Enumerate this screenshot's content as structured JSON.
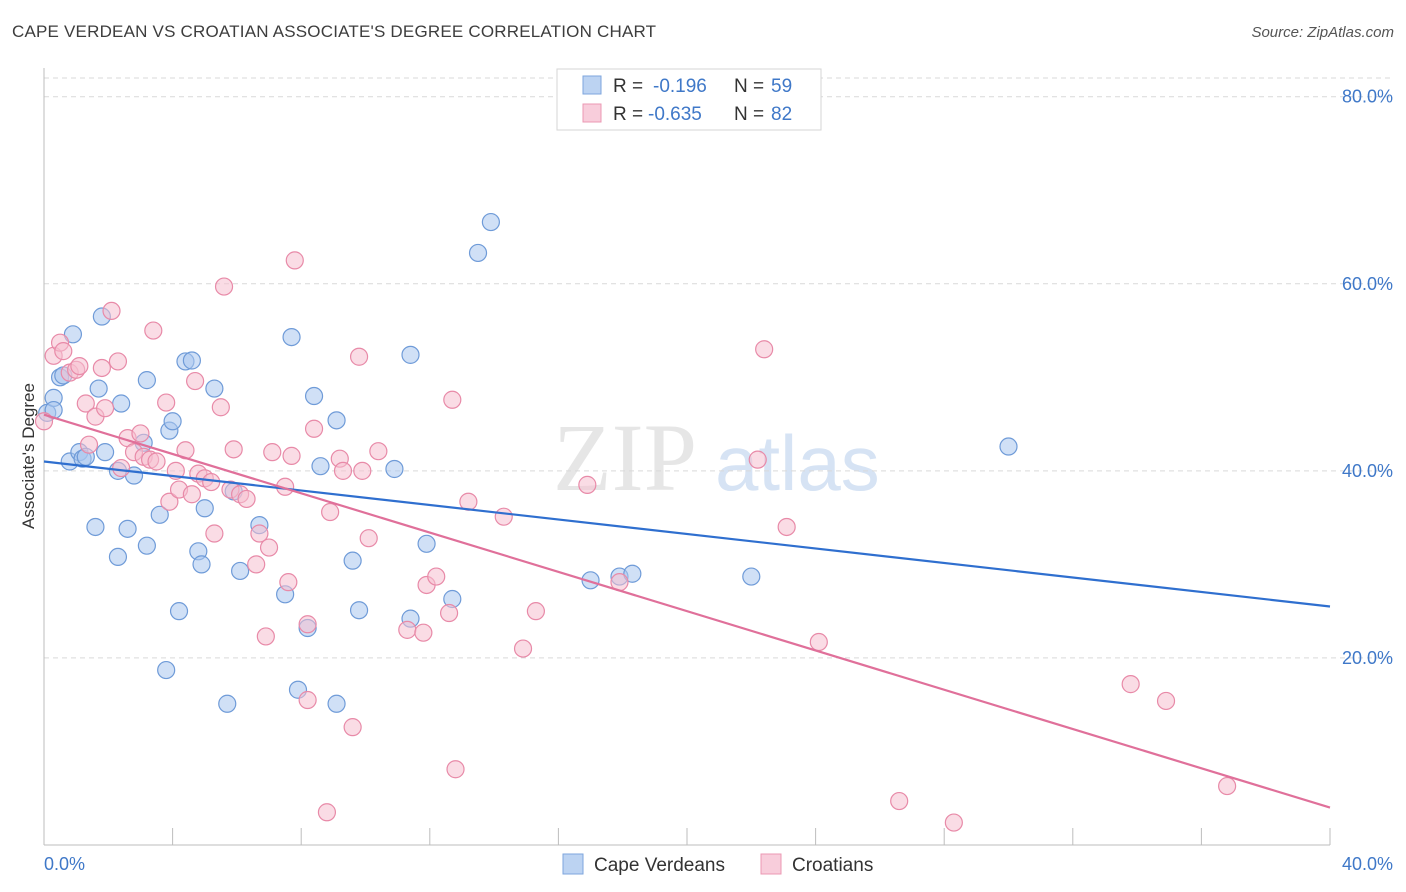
{
  "title": "CAPE VERDEAN VS CROATIAN ASSOCIATE'S DEGREE CORRELATION CHART",
  "source": "Source: ZipAtlas.com",
  "watermark": {
    "zip": "ZIP",
    "atlas": "atlas"
  },
  "colors": {
    "blue_fill": "#a9c6ee",
    "blue_stroke": "#6f9bd8",
    "blue_line": "#2f6fcf",
    "pink_fill": "#f6bfd0",
    "pink_stroke": "#e88aa8",
    "pink_line": "#e0709a",
    "grid": "#d9d9d9",
    "axis_text": "#3f78c8"
  },
  "legend": {
    "rows": [
      {
        "r_label": "R = ",
        "r_value": "-0.196",
        "n_label": "N = ",
        "n_value": "59",
        "series": "blue"
      },
      {
        "r_label": "R = ",
        "r_value": "-0.635",
        "n_label": "N = ",
        "n_value": "82",
        "series": "pink"
      }
    ]
  },
  "bottom_legend": [
    {
      "label": "Cape Verdeans",
      "series": "blue"
    },
    {
      "label": "Croatians",
      "series": "pink"
    }
  ],
  "chart_data": {
    "type": "scatter",
    "title": "CAPE VERDEAN VS CROATIAN ASSOCIATE'S DEGREE CORRELATION CHART",
    "ylabel": "Associate's Degree",
    "xlabel": "",
    "xlim": [
      0,
      40
    ],
    "ylim": [
      0,
      82
    ],
    "x_tick_labels": [
      {
        "value": 0,
        "label": "0.0%"
      },
      {
        "value": 40,
        "label": "40.0%"
      }
    ],
    "y_tick_labels": [
      {
        "value": 20,
        "label": "20.0%"
      },
      {
        "value": 40,
        "label": "40.0%"
      },
      {
        "value": 60,
        "label": "60.0%"
      },
      {
        "value": 80,
        "label": "80.0%"
      }
    ],
    "grid": "horizontal dashed",
    "series": [
      {
        "name": "Cape Verdeans",
        "color": "#a9c6ee",
        "trend": {
          "x": [
            0,
            40
          ],
          "y": [
            41.0,
            25.5
          ]
        },
        "points": [
          [
            0.1,
            46.2
          ],
          [
            0.3,
            47.8
          ],
          [
            0.3,
            46.5
          ],
          [
            0.5,
            50.0
          ],
          [
            0.6,
            50.2
          ],
          [
            0.8,
            41.0
          ],
          [
            0.9,
            54.6
          ],
          [
            1.1,
            42.0
          ],
          [
            1.2,
            41.3
          ],
          [
            1.3,
            41.5
          ],
          [
            1.6,
            34.0
          ],
          [
            1.7,
            48.8
          ],
          [
            1.8,
            56.5
          ],
          [
            1.9,
            42.0
          ],
          [
            2.3,
            30.8
          ],
          [
            2.3,
            40.0
          ],
          [
            2.4,
            47.2
          ],
          [
            2.6,
            33.8
          ],
          [
            2.8,
            39.5
          ],
          [
            3.1,
            43.0
          ],
          [
            3.2,
            32.0
          ],
          [
            3.2,
            49.7
          ],
          [
            3.6,
            35.3
          ],
          [
            3.8,
            18.7
          ],
          [
            3.9,
            44.3
          ],
          [
            4.0,
            45.3
          ],
          [
            4.2,
            25.0
          ],
          [
            4.4,
            51.7
          ],
          [
            4.6,
            51.8
          ],
          [
            4.8,
            31.4
          ],
          [
            4.9,
            30.0
          ],
          [
            5.0,
            36.0
          ],
          [
            5.3,
            48.8
          ],
          [
            5.7,
            15.1
          ],
          [
            5.9,
            37.8
          ],
          [
            6.1,
            29.3
          ],
          [
            6.7,
            34.2
          ],
          [
            7.5,
            26.8
          ],
          [
            7.7,
            54.3
          ],
          [
            7.9,
            16.6
          ],
          [
            8.2,
            23.2
          ],
          [
            8.4,
            48.0
          ],
          [
            8.6,
            40.5
          ],
          [
            9.1,
            15.1
          ],
          [
            9.1,
            45.4
          ],
          [
            9.6,
            30.4
          ],
          [
            9.8,
            25.1
          ],
          [
            10.9,
            40.2
          ],
          [
            11.4,
            52.4
          ],
          [
            11.4,
            24.2
          ],
          [
            11.9,
            32.2
          ],
          [
            12.7,
            26.3
          ],
          [
            13.5,
            63.3
          ],
          [
            13.9,
            66.6
          ],
          [
            17.0,
            28.3
          ],
          [
            17.9,
            28.7
          ],
          [
            18.3,
            29.0
          ],
          [
            22.0,
            28.7
          ],
          [
            30.0,
            42.6
          ]
        ]
      },
      {
        "name": "Croatians",
        "color": "#f6bfd0",
        "trend": {
          "x": [
            0,
            40
          ],
          "y": [
            46.0,
            4.0
          ]
        },
        "points": [
          [
            0.0,
            45.3
          ],
          [
            0.3,
            52.3
          ],
          [
            0.5,
            53.7
          ],
          [
            0.6,
            52.8
          ],
          [
            0.8,
            50.5
          ],
          [
            1.0,
            50.8
          ],
          [
            1.1,
            51.2
          ],
          [
            1.3,
            47.2
          ],
          [
            1.4,
            42.8
          ],
          [
            1.6,
            45.8
          ],
          [
            1.8,
            51.0
          ],
          [
            1.9,
            46.7
          ],
          [
            2.3,
            51.7
          ],
          [
            2.4,
            40.3
          ],
          [
            2.1,
            57.1
          ],
          [
            2.6,
            43.5
          ],
          [
            2.8,
            42.0
          ],
          [
            3.0,
            44.0
          ],
          [
            3.1,
            41.5
          ],
          [
            3.3,
            41.2
          ],
          [
            3.4,
            55.0
          ],
          [
            3.5,
            41.0
          ],
          [
            3.8,
            47.3
          ],
          [
            3.9,
            36.7
          ],
          [
            4.1,
            40.0
          ],
          [
            4.2,
            38.0
          ],
          [
            4.4,
            42.2
          ],
          [
            4.6,
            37.5
          ],
          [
            4.7,
            49.6
          ],
          [
            4.8,
            39.7
          ],
          [
            5.0,
            39.2
          ],
          [
            5.2,
            38.8
          ],
          [
            5.3,
            33.3
          ],
          [
            5.5,
            46.8
          ],
          [
            5.6,
            59.7
          ],
          [
            5.8,
            38.0
          ],
          [
            5.9,
            42.3
          ],
          [
            6.1,
            37.5
          ],
          [
            6.3,
            37.0
          ],
          [
            6.6,
            30.0
          ],
          [
            6.7,
            33.3
          ],
          [
            6.9,
            22.3
          ],
          [
            7.0,
            31.8
          ],
          [
            7.1,
            42.0
          ],
          [
            7.5,
            38.3
          ],
          [
            7.6,
            28.1
          ],
          [
            7.7,
            41.6
          ],
          [
            7.8,
            62.5
          ],
          [
            8.2,
            15.5
          ],
          [
            8.2,
            23.6
          ],
          [
            8.4,
            44.5
          ],
          [
            8.8,
            3.5
          ],
          [
            8.9,
            35.6
          ],
          [
            9.2,
            41.3
          ],
          [
            9.3,
            40.0
          ],
          [
            9.6,
            12.6
          ],
          [
            9.8,
            52.2
          ],
          [
            9.9,
            40.0
          ],
          [
            10.1,
            32.8
          ],
          [
            10.4,
            42.1
          ],
          [
            11.3,
            23.0
          ],
          [
            11.8,
            22.7
          ],
          [
            11.9,
            27.8
          ],
          [
            12.2,
            28.7
          ],
          [
            12.7,
            47.6
          ],
          [
            12.6,
            24.8
          ],
          [
            12.8,
            8.1
          ],
          [
            13.2,
            36.7
          ],
          [
            14.3,
            35.1
          ],
          [
            14.9,
            21.0
          ],
          [
            15.3,
            25.0
          ],
          [
            16.9,
            38.5
          ],
          [
            17.9,
            28.1
          ],
          [
            22.2,
            41.2
          ],
          [
            22.4,
            53.0
          ],
          [
            23.1,
            34.0
          ],
          [
            24.1,
            21.7
          ],
          [
            26.6,
            4.7
          ],
          [
            28.3,
            2.4
          ],
          [
            33.8,
            17.2
          ],
          [
            34.9,
            15.4
          ],
          [
            36.8,
            6.3
          ]
        ]
      }
    ]
  }
}
